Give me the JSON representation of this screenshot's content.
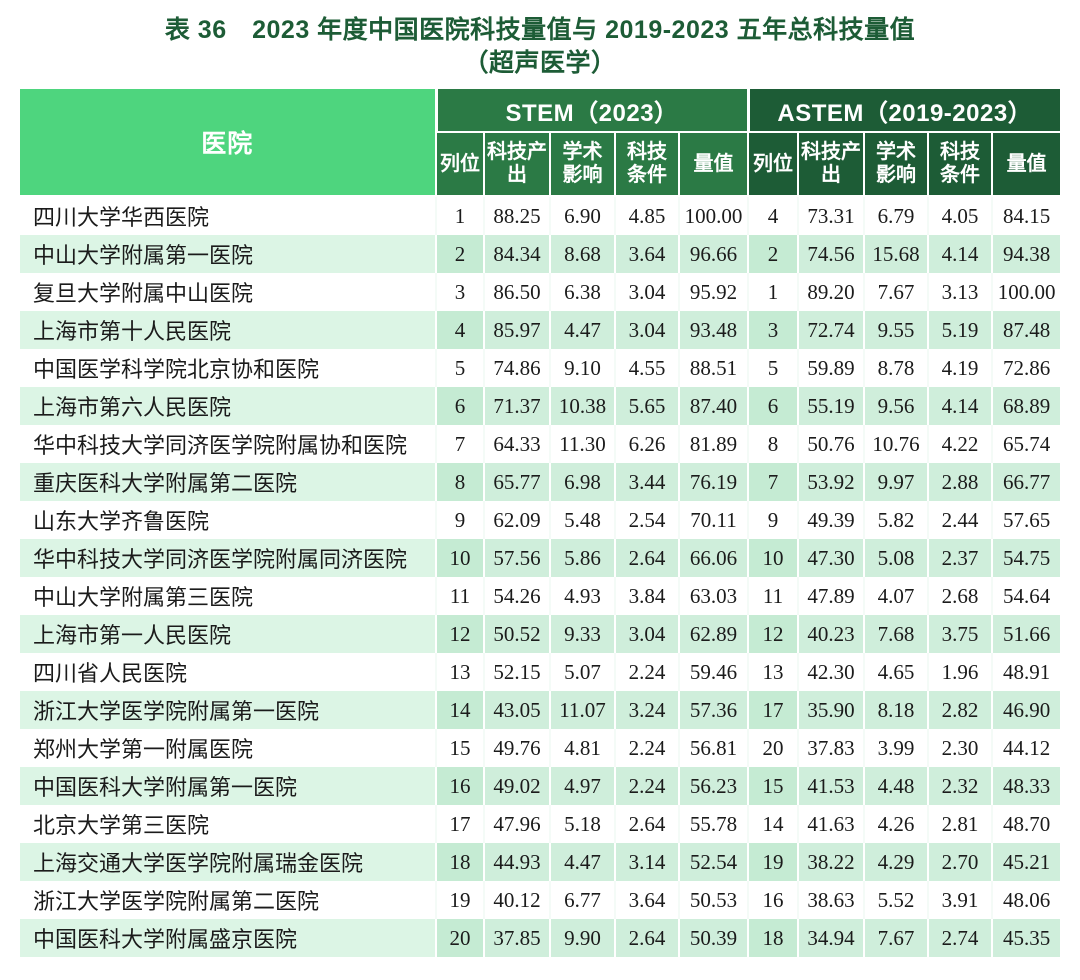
{
  "title": {
    "line1": "表 36　2023 年度中国医院科技量值与 2019-2023 五年总科技量值",
    "line2": "（超声医学）"
  },
  "colors": {
    "title_text": "#1d5c36",
    "hospital_header_bg": "#4ed57e",
    "stem_header_bg": "#2b7a45",
    "astem_header_bg": "#1d5c36",
    "even_row_bg": "#cfeedb",
    "odd_row_bg": "#ffffff",
    "header_text": "#ffffff"
  },
  "table": {
    "hospital_header": "医院",
    "groups": [
      {
        "label": "STEM（2023）"
      },
      {
        "label": "ASTEM（2019-2023）"
      }
    ],
    "subheaders": [
      "列位",
      "科技产出",
      "学术影响",
      "科技条件",
      "量值"
    ],
    "rows": [
      {
        "hospital": "四川大学华西医院",
        "stem": [
          "1",
          "88.25",
          "6.90",
          "4.85",
          "100.00"
        ],
        "astem": [
          "4",
          "73.31",
          "6.79",
          "4.05",
          "84.15"
        ]
      },
      {
        "hospital": "中山大学附属第一医院",
        "stem": [
          "2",
          "84.34",
          "8.68",
          "3.64",
          "96.66"
        ],
        "astem": [
          "2",
          "74.56",
          "15.68",
          "4.14",
          "94.38"
        ]
      },
      {
        "hospital": "复旦大学附属中山医院",
        "stem": [
          "3",
          "86.50",
          "6.38",
          "3.04",
          "95.92"
        ],
        "astem": [
          "1",
          "89.20",
          "7.67",
          "3.13",
          "100.00"
        ]
      },
      {
        "hospital": "上海市第十人民医院",
        "stem": [
          "4",
          "85.97",
          "4.47",
          "3.04",
          "93.48"
        ],
        "astem": [
          "3",
          "72.74",
          "9.55",
          "5.19",
          "87.48"
        ]
      },
      {
        "hospital": "中国医学科学院北京协和医院",
        "stem": [
          "5",
          "74.86",
          "9.10",
          "4.55",
          "88.51"
        ],
        "astem": [
          "5",
          "59.89",
          "8.78",
          "4.19",
          "72.86"
        ]
      },
      {
        "hospital": "上海市第六人民医院",
        "stem": [
          "6",
          "71.37",
          "10.38",
          "5.65",
          "87.40"
        ],
        "astem": [
          "6",
          "55.19",
          "9.56",
          "4.14",
          "68.89"
        ]
      },
      {
        "hospital": "华中科技大学同济医学院附属协和医院",
        "stem": [
          "7",
          "64.33",
          "11.30",
          "6.26",
          "81.89"
        ],
        "astem": [
          "8",
          "50.76",
          "10.76",
          "4.22",
          "65.74"
        ]
      },
      {
        "hospital": "重庆医科大学附属第二医院",
        "stem": [
          "8",
          "65.77",
          "6.98",
          "3.44",
          "76.19"
        ],
        "astem": [
          "7",
          "53.92",
          "9.97",
          "2.88",
          "66.77"
        ]
      },
      {
        "hospital": "山东大学齐鲁医院",
        "stem": [
          "9",
          "62.09",
          "5.48",
          "2.54",
          "70.11"
        ],
        "astem": [
          "9",
          "49.39",
          "5.82",
          "2.44",
          "57.65"
        ]
      },
      {
        "hospital": "华中科技大学同济医学院附属同济医院",
        "stem": [
          "10",
          "57.56",
          "5.86",
          "2.64",
          "66.06"
        ],
        "astem": [
          "10",
          "47.30",
          "5.08",
          "2.37",
          "54.75"
        ]
      },
      {
        "hospital": "中山大学附属第三医院",
        "stem": [
          "11",
          "54.26",
          "4.93",
          "3.84",
          "63.03"
        ],
        "astem": [
          "11",
          "47.89",
          "4.07",
          "2.68",
          "54.64"
        ]
      },
      {
        "hospital": "上海市第一人民医院",
        "stem": [
          "12",
          "50.52",
          "9.33",
          "3.04",
          "62.89"
        ],
        "astem": [
          "12",
          "40.23",
          "7.68",
          "3.75",
          "51.66"
        ]
      },
      {
        "hospital": "四川省人民医院",
        "stem": [
          "13",
          "52.15",
          "5.07",
          "2.24",
          "59.46"
        ],
        "astem": [
          "13",
          "42.30",
          "4.65",
          "1.96",
          "48.91"
        ]
      },
      {
        "hospital": "浙江大学医学院附属第一医院",
        "stem": [
          "14",
          "43.05",
          "11.07",
          "3.24",
          "57.36"
        ],
        "astem": [
          "17",
          "35.90",
          "8.18",
          "2.82",
          "46.90"
        ]
      },
      {
        "hospital": "郑州大学第一附属医院",
        "stem": [
          "15",
          "49.76",
          "4.81",
          "2.24",
          "56.81"
        ],
        "astem": [
          "20",
          "37.83",
          "3.99",
          "2.30",
          "44.12"
        ]
      },
      {
        "hospital": "中国医科大学附属第一医院",
        "stem": [
          "16",
          "49.02",
          "4.97",
          "2.24",
          "56.23"
        ],
        "astem": [
          "15",
          "41.53",
          "4.48",
          "2.32",
          "48.33"
        ]
      },
      {
        "hospital": "北京大学第三医院",
        "stem": [
          "17",
          "47.96",
          "5.18",
          "2.64",
          "55.78"
        ],
        "astem": [
          "14",
          "41.63",
          "4.26",
          "2.81",
          "48.70"
        ]
      },
      {
        "hospital": "上海交通大学医学院附属瑞金医院",
        "stem": [
          "18",
          "44.93",
          "4.47",
          "3.14",
          "52.54"
        ],
        "astem": [
          "19",
          "38.22",
          "4.29",
          "2.70",
          "45.21"
        ]
      },
      {
        "hospital": "浙江大学医学院附属第二医院",
        "stem": [
          "19",
          "40.12",
          "6.77",
          "3.64",
          "50.53"
        ],
        "astem": [
          "16",
          "38.63",
          "5.52",
          "3.91",
          "48.06"
        ]
      },
      {
        "hospital": "中国医科大学附属盛京医院",
        "stem": [
          "20",
          "37.85",
          "9.90",
          "2.64",
          "50.39"
        ],
        "astem": [
          "18",
          "34.94",
          "7.67",
          "2.74",
          "45.35"
        ]
      }
    ]
  }
}
